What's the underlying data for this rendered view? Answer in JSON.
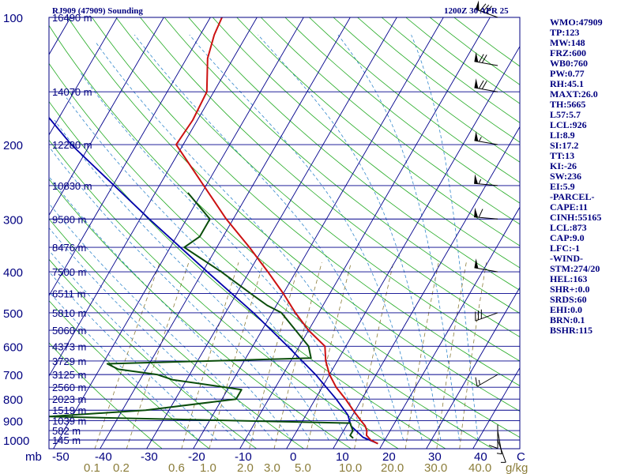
{
  "header": {
    "station": "RJ909 (47909) Sounding",
    "time": "1200Z 30 APR 25"
  },
  "stats": [
    "WMO:47909",
    "TP:123",
    "MW:148",
    "FRZ:600",
    "WB0:760",
    "PW:0.77",
    "RH:45.1",
    "MAXT:26.0",
    "TH:5665",
    "L57:5.7",
    "LCL:926",
    "LI:8.9",
    "SI:17.2",
    "TT:13",
    "KI:-26",
    "SW:236",
    "EI:5.9",
    "-PARCEL-",
    "CAPE:11",
    "CINH:55165",
    "LCL:873",
    "CAP:9.0",
    "LFC:-1",
    "-WIND-",
    "STM:274/20",
    "HEL:163",
    "SHR+:0.0",
    "SRDS:60",
    "EHI:0.0",
    "BRN:0.1",
    "BSHR:115"
  ],
  "colors": {
    "isobar": "#00008b",
    "dry_adiabat": "#22aa22",
    "moist_adiabat": "#3388cc",
    "mixing_ratio": "#8b7d3a",
    "temperature": "#cc1111",
    "dewpoint": "#0a4d0a",
    "parcel": "#0000aa",
    "text": "#000080",
    "mixing_label": "#8b7d3a"
  },
  "chart_data": {
    "type": "skew-t",
    "pressure_levels": [
      {
        "p": 100,
        "label": "100"
      },
      {
        "p": 150
      },
      {
        "p": 200,
        "label": "200"
      },
      {
        "p": 250
      },
      {
        "p": 300,
        "label": "300"
      },
      {
        "p": 350
      },
      {
        "p": 400,
        "label": "400"
      },
      {
        "p": 450
      },
      {
        "p": 500,
        "label": "500"
      },
      {
        "p": 550
      },
      {
        "p": 600,
        "label": "600"
      },
      {
        "p": 650
      },
      {
        "p": 700,
        "label": "700"
      },
      {
        "p": 750
      },
      {
        "p": 800,
        "label": "800"
      },
      {
        "p": 850
      },
      {
        "p": 900,
        "label": "900"
      },
      {
        "p": 950
      },
      {
        "p": 1000,
        "label": "1000"
      }
    ],
    "pressure_unit": "mb",
    "height_labels": [
      {
        "p": 100,
        "h": "16490 m"
      },
      {
        "p": 150,
        "h": "14070 m"
      },
      {
        "p": 200,
        "h": "12280 m"
      },
      {
        "p": 250,
        "h": "10830 m"
      },
      {
        "p": 300,
        "h": "9580 m"
      },
      {
        "p": 350,
        "h": "8476 m"
      },
      {
        "p": 400,
        "h": "7500 m"
      },
      {
        "p": 450,
        "h": "6511 m"
      },
      {
        "p": 500,
        "h": "5810 m"
      },
      {
        "p": 550,
        "h": "5060 m"
      },
      {
        "p": 600,
        "h": "4373 m"
      },
      {
        "p": 650,
        "h": "3729 m"
      },
      {
        "p": 700,
        "h": "3125 m"
      },
      {
        "p": 750,
        "h": "2560 m"
      },
      {
        "p": 800,
        "h": "2023 m"
      },
      {
        "p": 850,
        "h": "1519 m"
      },
      {
        "p": 900,
        "h": "1039 m"
      },
      {
        "p": 950,
        "h": "582 m"
      },
      {
        "p": 1000,
        "h": "145 m"
      }
    ],
    "temperature_ticks": [
      "-50",
      "-40",
      "-30",
      "-20",
      "-10",
      "0",
      "10",
      "20",
      "30",
      "40",
      "C"
    ],
    "mixing_ratio_ticks": [
      "0.1",
      "0.2",
      "0.6",
      "1.0",
      "2.0",
      "3.0",
      "5.0",
      "10.0",
      "20.0",
      "30.0",
      "40.0",
      "g/kg"
    ],
    "mixing_ratio_values": [
      0.1,
      0.2,
      0.6,
      1.0,
      2.0,
      3.0,
      5.0,
      10.0,
      20.0,
      30.0,
      40.0
    ],
    "temperature_profile": [
      {
        "p": 1020,
        "t": 19
      },
      {
        "p": 1000,
        "t": 17
      },
      {
        "p": 975,
        "t": 15.5
      },
      {
        "p": 950,
        "t": 15
      },
      {
        "p": 925,
        "t": 14
      },
      {
        "p": 900,
        "t": 12.5
      },
      {
        "p": 850,
        "t": 9.5
      },
      {
        "p": 800,
        "t": 6.5
      },
      {
        "p": 750,
        "t": 3
      },
      {
        "p": 700,
        "t": 0
      },
      {
        "p": 650,
        "t": -2.5
      },
      {
        "p": 600,
        "t": -4.5
      },
      {
        "p": 550,
        "t": -10
      },
      {
        "p": 500,
        "t": -15
      },
      {
        "p": 450,
        "t": -20
      },
      {
        "p": 400,
        "t": -26
      },
      {
        "p": 350,
        "t": -33
      },
      {
        "p": 300,
        "t": -41.5
      },
      {
        "p": 250,
        "t": -50.5
      },
      {
        "p": 200,
        "t": -61.5
      },
      {
        "p": 175,
        "t": -61
      },
      {
        "p": 150,
        "t": -61.5
      },
      {
        "p": 125,
        "t": -65.5
      },
      {
        "p": 110,
        "t": -67
      },
      {
        "p": 100,
        "t": -67.5
      }
    ],
    "dewpoint_profile": [
      {
        "p": 990,
        "t": 13
      },
      {
        "p": 975,
        "t": 12
      },
      {
        "p": 950,
        "t": 12
      },
      {
        "p": 925,
        "t": 11
      },
      {
        "p": 912,
        "t": 10.5
      },
      {
        "p": 880,
        "t": -55
      },
      {
        "p": 850,
        "t": -35
      },
      {
        "p": 800,
        "t": -17
      },
      {
        "p": 760,
        "t": -17
      },
      {
        "p": 720,
        "t": -33
      },
      {
        "p": 700,
        "t": -37
      },
      {
        "p": 680,
        "t": -46
      },
      {
        "p": 660,
        "t": -49
      },
      {
        "p": 640,
        "t": -6
      },
      {
        "p": 600,
        "t": -8
      },
      {
        "p": 500,
        "t": -18
      },
      {
        "p": 480,
        "t": -22
      },
      {
        "p": 450,
        "t": -27
      },
      {
        "p": 400,
        "t": -36
      },
      {
        "p": 350,
        "t": -47
      },
      {
        "p": 330,
        "t": -45
      },
      {
        "p": 300,
        "t": -45
      },
      {
        "p": 260,
        "t": -53
      }
    ],
    "parcel_profile": [
      {
        "p": 1020,
        "t": 19
      },
      {
        "p": 985,
        "t": 15
      },
      {
        "p": 926,
        "t": 11
      },
      {
        "p": 873,
        "t": 9
      },
      {
        "p": 800,
        "t": 4.5
      },
      {
        "p": 700,
        "t": -3
      },
      {
        "p": 600,
        "t": -12.5
      },
      {
        "p": 500,
        "t": -24
      },
      {
        "p": 400,
        "t": -39
      },
      {
        "p": 300,
        "t": -58
      },
      {
        "p": 200,
        "t": -84
      },
      {
        "p": 150,
        "t": -100
      },
      {
        "p": 125,
        "t": -110
      }
    ],
    "wind_barbs": [
      {
        "p": 100,
        "dir": 290,
        "spd": 80
      },
      {
        "p": 130,
        "dir": 280,
        "spd": 70
      },
      {
        "p": 150,
        "dir": 280,
        "spd": 70
      },
      {
        "p": 200,
        "dir": 280,
        "spd": 55
      },
      {
        "p": 250,
        "dir": 275,
        "spd": 55
      },
      {
        "p": 300,
        "dir": 275,
        "spd": 60
      },
      {
        "p": 400,
        "dir": 280,
        "spd": 50
      },
      {
        "p": 500,
        "dir": 250,
        "spd": 30
      },
      {
        "p": 700,
        "dir": 240,
        "spd": 15
      },
      {
        "p": 920,
        "dir": 180,
        "spd": 10
      },
      {
        "p": 950,
        "dir": 170,
        "spd": 5
      },
      {
        "p": 1000,
        "dir": 160,
        "spd": 5
      }
    ]
  }
}
